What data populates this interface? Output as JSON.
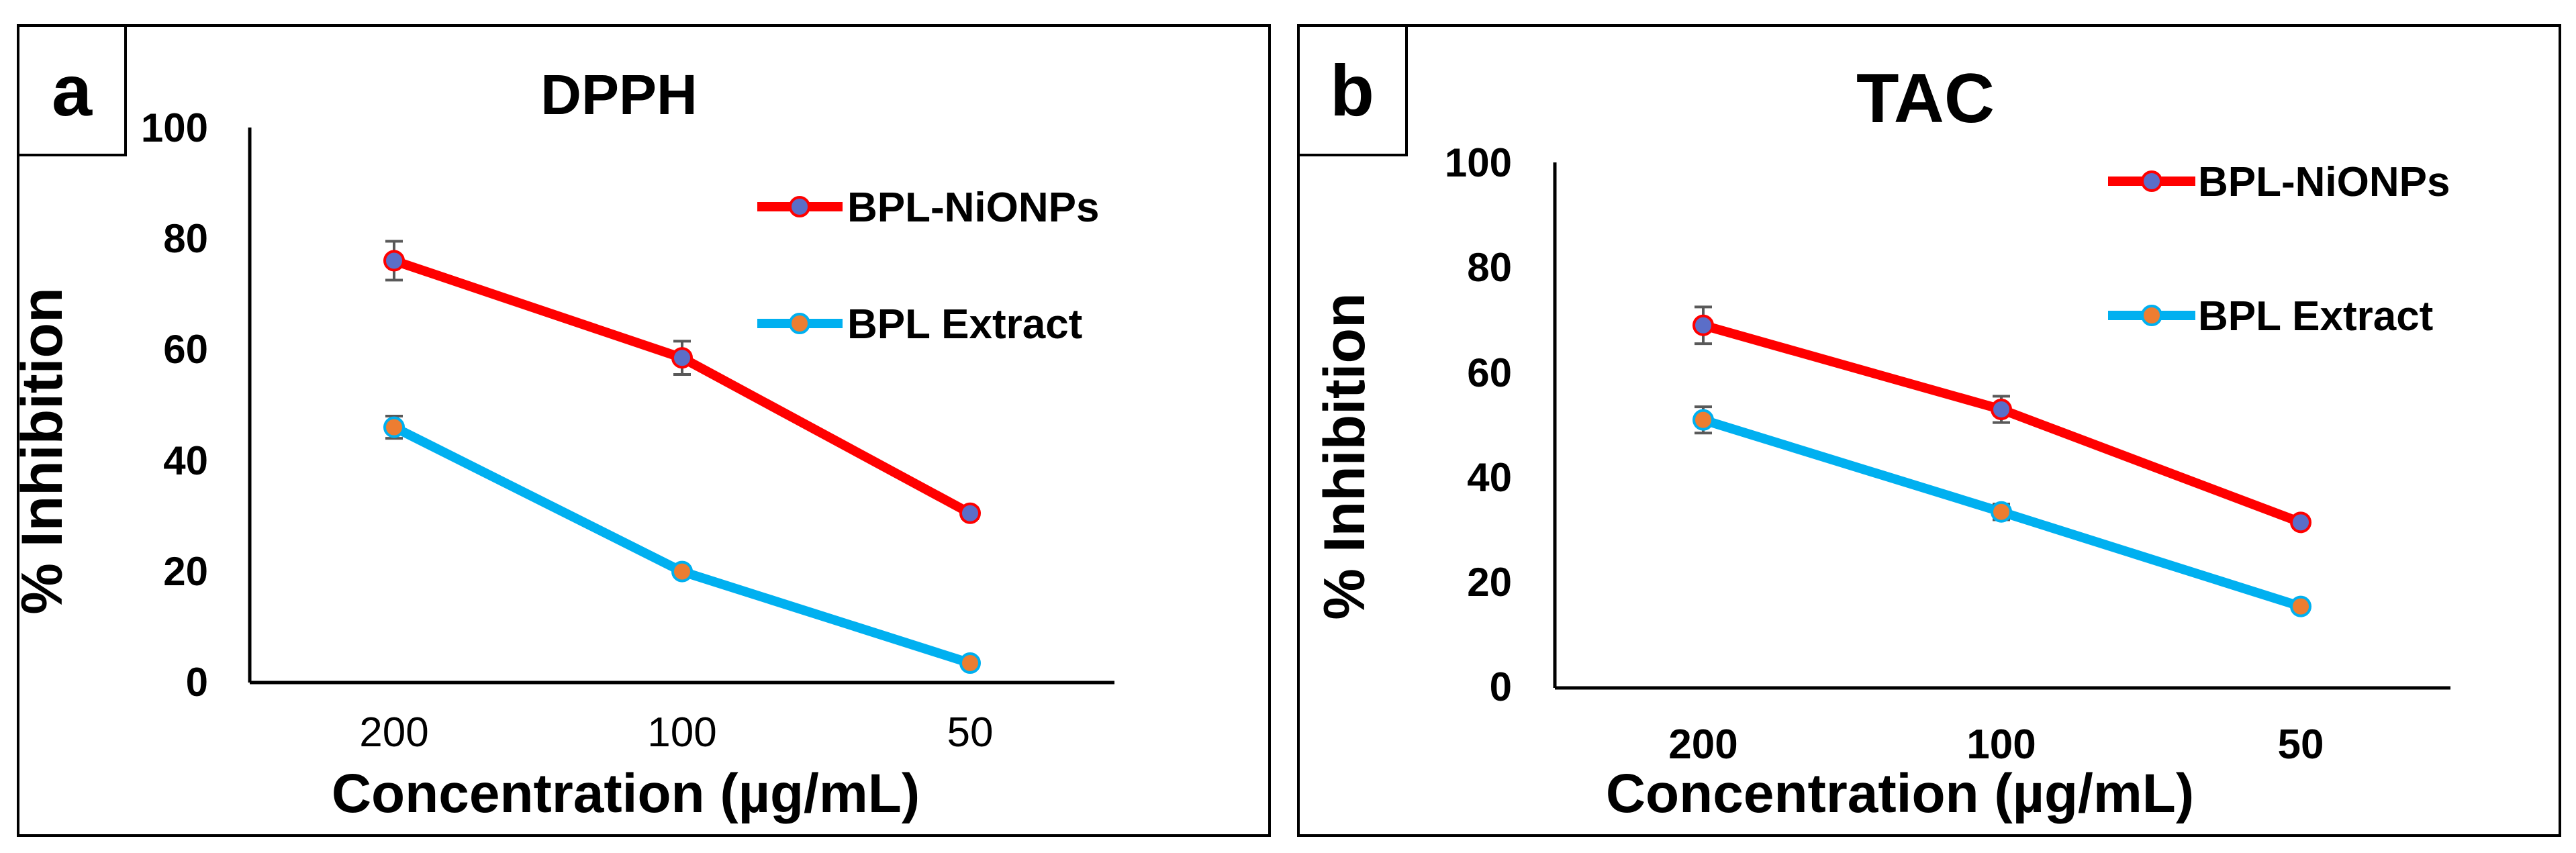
{
  "chart_data": [
    {
      "type": "line",
      "panel_label": "a",
      "title": "DPPH",
      "xlabel": "Concentration (µg/mL)",
      "ylabel": "% Inhibition",
      "categories": [
        "200",
        "100",
        "50"
      ],
      "ylim": [
        0,
        100
      ],
      "yticks": [
        "0",
        "20",
        "40",
        "60",
        "80",
        "100"
      ],
      "grid": false,
      "legend_position": "top-right",
      "series": [
        {
          "name": "BPL-NiONPs",
          "values": [
            76,
            58.5,
            30.5
          ],
          "errors": [
            3.5,
            3,
            1
          ],
          "color": "#ff0000",
          "marker": "#5b6ec8"
        },
        {
          "name": "BPL Extract",
          "values": [
            46,
            20,
            3.5
          ],
          "errors": [
            2,
            0.8,
            0.5
          ],
          "color": "#00b0f0",
          "marker": "#ed7d31"
        }
      ]
    },
    {
      "type": "line",
      "panel_label": "b",
      "title": "TAC",
      "xlabel": "Concentration (µg/mL)",
      "ylabel": "% Inhibition",
      "categories": [
        "200",
        "100",
        "50"
      ],
      "ylim": [
        0,
        100
      ],
      "yticks": [
        "0",
        "20",
        "40",
        "60",
        "80",
        "100"
      ],
      "grid": false,
      "legend_position": "top-right",
      "series": [
        {
          "name": "BPL-NiONPs",
          "values": [
            69,
            53,
            31.5
          ],
          "errors": [
            3.5,
            2.5,
            1
          ],
          "color": "#ff0000",
          "marker": "#5b6ec8"
        },
        {
          "name": "BPL Extract",
          "values": [
            51,
            33.5,
            15.5
          ],
          "errors": [
            2.5,
            1.5,
            0.5
          ],
          "color": "#00b0f0",
          "marker": "#ed7d31"
        }
      ]
    }
  ]
}
